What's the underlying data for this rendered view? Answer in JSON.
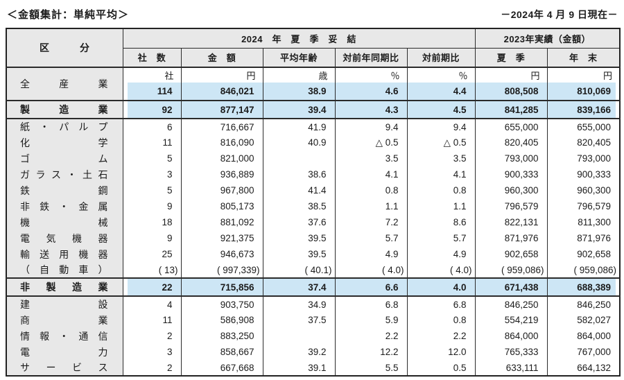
{
  "page": {
    "title": "＜金額集計：単純平均＞",
    "date_note": "－2024年 4 月 9 日現在－"
  },
  "colors": {
    "highlight_blue": "#cde6f5",
    "header_gray": "#e8e8e8",
    "border": "#2a2a2a"
  },
  "table": {
    "kubun_header": "区　　　分",
    "group_2024": "2024　年　夏　季　妥　結",
    "group_2023": "2023年実績（金額）",
    "columns": [
      "社　数",
      "金　額",
      "平均年齢",
      "対前年同期比",
      "対前期比",
      "夏　季",
      "年　末"
    ],
    "units": [
      "社",
      "円",
      "歳",
      "％",
      "％",
      "円",
      "円"
    ],
    "sections": [
      {
        "name": "all-industries",
        "has_units_row": true,
        "rows": [
          {
            "label": "全産業",
            "values": [
              "114",
              "846,021",
              "38.9",
              "4.6",
              "4.4",
              "808,508",
              "810,069"
            ],
            "highlight": true,
            "summary": true
          }
        ]
      },
      {
        "name": "manufacturing-total",
        "rows": [
          {
            "label": "製造業",
            "values": [
              "92",
              "877,147",
              "39.4",
              "4.3",
              "4.5",
              "841,285",
              "839,166"
            ],
            "highlight": true,
            "summary": true
          }
        ]
      },
      {
        "name": "manufacturing-industries",
        "rows": [
          {
            "label": "紙・パルプ",
            "values": [
              "6",
              "716,667",
              "41.9",
              "9.4",
              "9.4",
              "655,000",
              "655,000"
            ]
          },
          {
            "label": "化学",
            "values": [
              "11",
              "816,090",
              "40.9",
              "△ 0.5",
              "△ 0.5",
              "820,405",
              "820,405"
            ]
          },
          {
            "label": "ゴム",
            "values": [
              "5",
              "821,000",
              "",
              "3.5",
              "3.5",
              "793,000",
              "793,000"
            ]
          },
          {
            "label": "ガラス・土石",
            "values": [
              "3",
              "936,889",
              "38.6",
              "4.1",
              "4.1",
              "900,333",
              "900,333"
            ]
          },
          {
            "label": "鉄鋼",
            "values": [
              "5",
              "967,800",
              "41.4",
              "0.8",
              "0.8",
              "960,300",
              "960,300"
            ]
          },
          {
            "label": "非鉄・金属",
            "values": [
              "9",
              "805,173",
              "38.5",
              "1.1",
              "1.1",
              "796,579",
              "796,579"
            ]
          },
          {
            "label": "機械",
            "values": [
              "18",
              "881,092",
              "37.6",
              "7.2",
              "8.6",
              "822,131",
              "811,300"
            ]
          },
          {
            "label": "電気機器",
            "values": [
              "9",
              "921,375",
              "39.5",
              "5.7",
              "5.7",
              "871,976",
              "871,976"
            ]
          },
          {
            "label": "輸送用機器",
            "values": [
              "25",
              "946,673",
              "39.5",
              "4.9",
              "4.9",
              "902,658",
              "902,658"
            ]
          },
          {
            "label": "（自動車）",
            "values": [
              "( 13)",
              "( 997,339)",
              "( 40.1)",
              "( 4.0)",
              "( 4.0)",
              "( 959,086)",
              "( 959,086)"
            ],
            "paren": true
          }
        ]
      },
      {
        "name": "non-manufacturing-total",
        "rows": [
          {
            "label": "非製造業",
            "values": [
              "22",
              "715,856",
              "37.4",
              "6.6",
              "4.0",
              "671,438",
              "688,389"
            ],
            "highlight": true,
            "summary": true
          }
        ]
      },
      {
        "name": "non-manufacturing-industries",
        "rows": [
          {
            "label": "建設",
            "values": [
              "4",
              "903,750",
              "34.9",
              "6.8",
              "6.8",
              "846,250",
              "846,250"
            ]
          },
          {
            "label": "商業",
            "values": [
              "11",
              "586,908",
              "37.5",
              "5.9",
              "0.8",
              "554,219",
              "582,027"
            ]
          },
          {
            "label": "情報・通信",
            "values": [
              "2",
              "883,250",
              "",
              "2.2",
              "2.2",
              "864,000",
              "864,000"
            ]
          },
          {
            "label": "電力",
            "values": [
              "3",
              "858,667",
              "39.2",
              "12.2",
              "12.0",
              "765,333",
              "767,000"
            ]
          },
          {
            "label": "サービス",
            "values": [
              "2",
              "667,668",
              "39.1",
              "5.5",
              "0.5",
              "633,111",
              "664,132"
            ]
          }
        ]
      }
    ]
  }
}
